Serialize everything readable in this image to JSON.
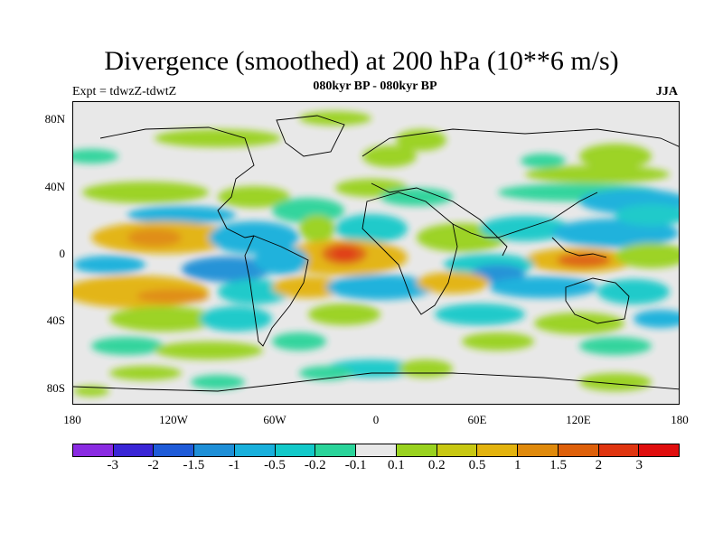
{
  "title": "Divergence (smoothed) at 200 hPa (10**6 m/s)",
  "subtitle": "080kyr BP - 080kyr BP",
  "expt": "Expt = tdwzZ-tdwtZ",
  "season": "JJA",
  "axes": {
    "y_ticks": [
      "80N",
      "40N",
      "0",
      "40S",
      "80S"
    ],
    "x_ticks": [
      "180",
      "120W",
      "60W",
      "0",
      "60E",
      "120E",
      "180"
    ]
  },
  "colorbar": {
    "colors": [
      "#8a2be2",
      "#3a26d6",
      "#1f5bd8",
      "#1e8fd7",
      "#19b0dc",
      "#13c9c9",
      "#2ad49a",
      "#e8e8e8",
      "#99d21f",
      "#c8c812",
      "#e3b30e",
      "#e08a0c",
      "#de600a",
      "#e03510",
      "#e00e0e"
    ],
    "labels": [
      "-3",
      "-2",
      "-1.5",
      "-1",
      "-0.5",
      "-0.2",
      "-0.1",
      "0.1",
      "0.2",
      "0.5",
      "1",
      "1.5",
      "2",
      "3"
    ]
  }
}
